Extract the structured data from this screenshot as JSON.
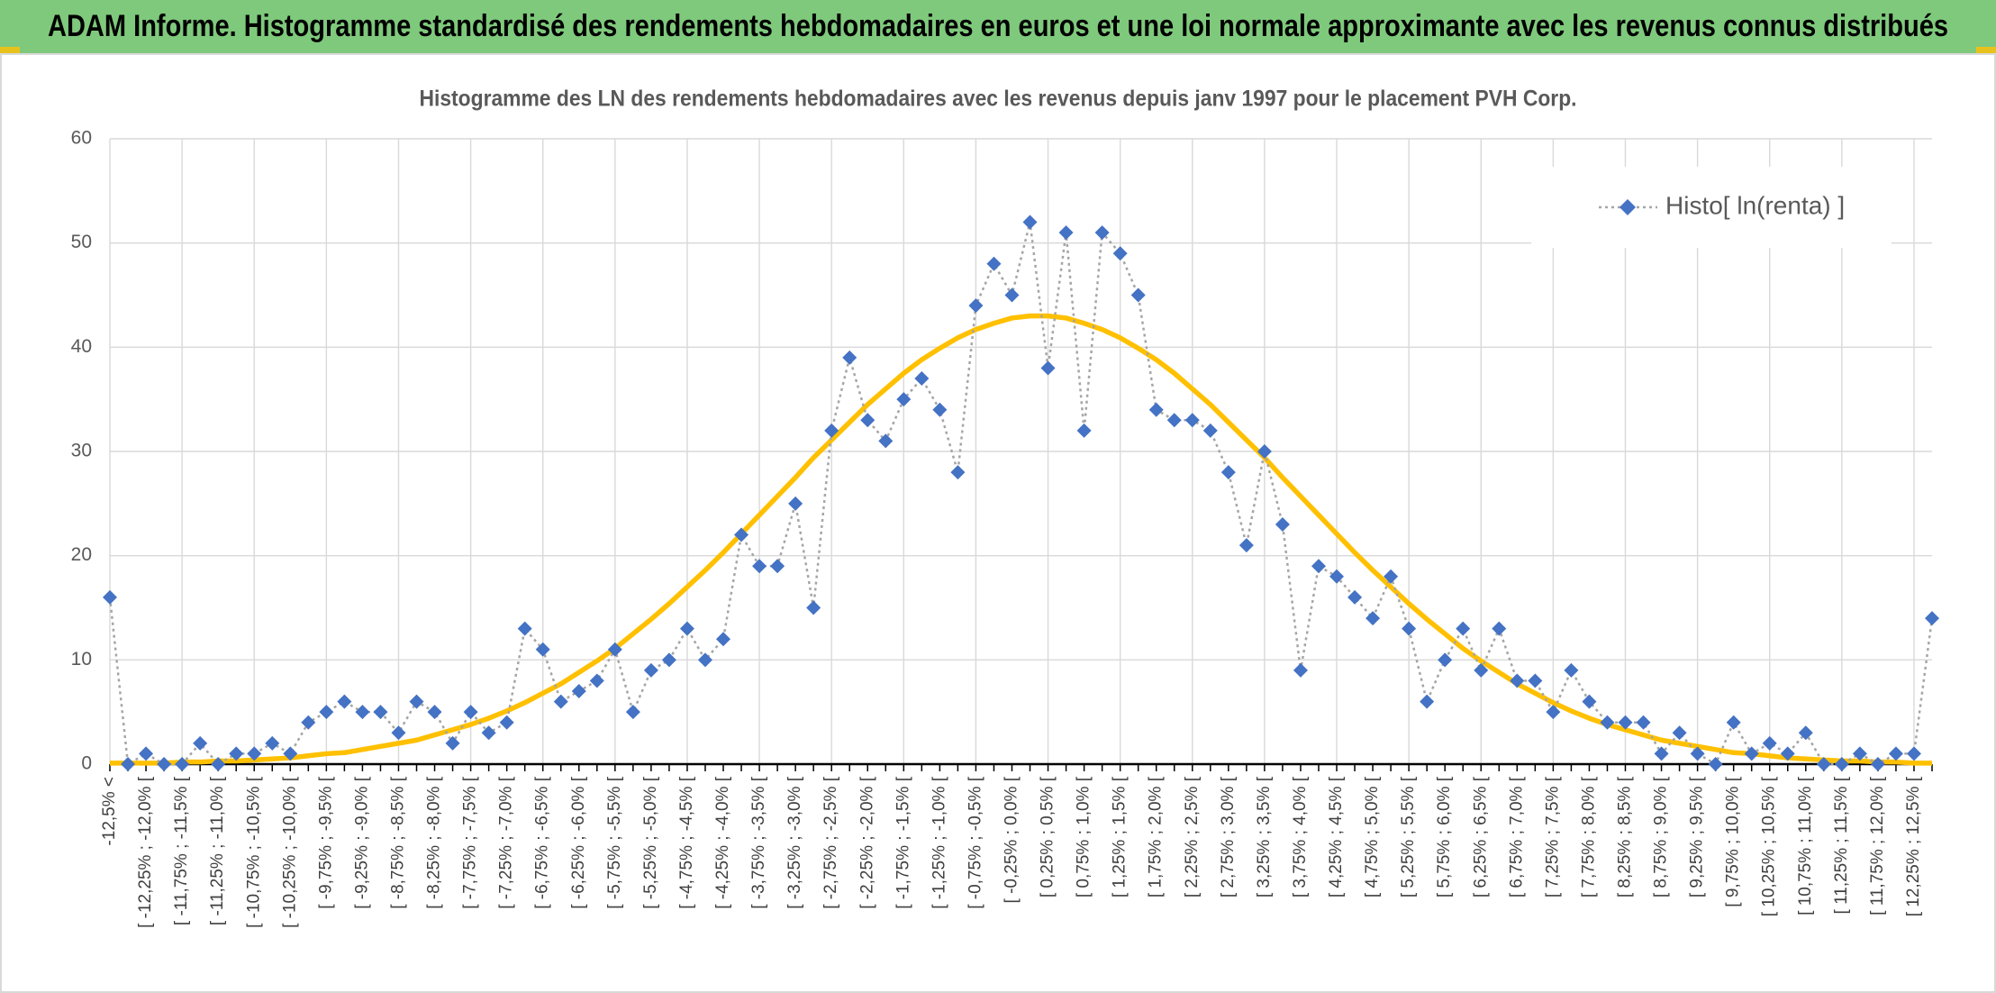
{
  "header": {
    "title": "ADAM Informe. Histogramme standardisé des rendements hebdomadaires en euros et une loi normale approximante avec les revenus connus distribués"
  },
  "chart_data": {
    "type": "line",
    "title": "Histogramme des LN des rendements hebdomadaires avec les revenus depuis janv 1997 pour le placement PVH Corp.",
    "categories": [
      "-12,5% <",
      null,
      "[ -12,25% ; -12,0% [",
      null,
      "[ -11,75% ; -11,5% [",
      null,
      "[ -11,25% ; -11,0% [",
      null,
      "[ -10,75% ; -10,5% [",
      null,
      "[ -10,25% ; -10,0% [",
      null,
      "[ -9,75% ; -9,5% [",
      null,
      "[ -9,25% ; -9,0% [",
      null,
      "[ -8,75% ; -8,5% [",
      null,
      "[ -8,25% ; -8,0% [",
      null,
      "[ -7,75% ; -7,5% [",
      null,
      "[ -7,25% ; -7,0% [",
      null,
      "[ -6,75% ; -6,5% [",
      null,
      "[ -6,25% ; -6,0% [",
      null,
      "[ -5,75% ; -5,5% [",
      null,
      "[ -5,25% ; -5,0% [",
      null,
      "[ -4,75% ; -4,5% [",
      null,
      "[ -4,25% ; -4,0% [",
      null,
      "[ -3,75% ; -3,5% [",
      null,
      "[ -3,25% ; -3,0% [",
      null,
      "[ -2,75% ; -2,5% [",
      null,
      "[ -2,25% ; -2,0% [",
      null,
      "[ -1,75% ; -1,5% [",
      null,
      "[ -1,25% ; -1,0% [",
      null,
      "[ -0,75% ; -0,5% [",
      null,
      "[ -0,25% ; 0,0% [",
      null,
      "[ 0,25% ; 0,5% [",
      null,
      "[ 0,75% ; 1,0% [",
      null,
      "[ 1,25% ; 1,5% [",
      null,
      "[ 1,75% ; 2,0% [",
      null,
      "[ 2,25% ; 2,5% [",
      null,
      "[ 2,75% ; 3,0% [",
      null,
      "[ 3,25% ; 3,5% [",
      null,
      "[ 3,75% ; 4,0% [",
      null,
      "[ 4,25% ; 4,5% [",
      null,
      "[ 4,75% ; 5,0% [",
      null,
      "[ 5,25% ; 5,5% [",
      null,
      "[ 5,75% ; 6,0% [",
      null,
      "[ 6,25% ; 6,5% [",
      null,
      "[ 6,75% ; 7,0% [",
      null,
      "[ 7,25% ; 7,5% [",
      null,
      "[ 7,75% ; 8,0% [",
      null,
      "[ 8,25% ; 8,5% [",
      null,
      "[ 8,75% ; 9,0% [",
      null,
      "[ 9,25% ; 9,5% [",
      null,
      "[ 9,75% ; 10,0% [",
      null,
      "[ 10,25% ; 10,5% [",
      null,
      "[ 10,75% ; 11,0% [",
      null,
      "[ 11,25% ; 11,5% [",
      null,
      "[ 11,75% ; 12,0% [",
      null,
      "[ 12,25% ; 12,5% [",
      null
    ],
    "series": [
      {
        "name": "Histo[ ln(renta) ]",
        "color": "#4472c4",
        "line_color": "#a5a5a5",
        "values": [
          16,
          0,
          1,
          0,
          0,
          2,
          0,
          1,
          1,
          2,
          1,
          4,
          5,
          6,
          5,
          5,
          3,
          6,
          5,
          2,
          5,
          3,
          4,
          13,
          11,
          6,
          7,
          8,
          11,
          5,
          9,
          10,
          13,
          10,
          12,
          22,
          19,
          19,
          25,
          15,
          32,
          39,
          33,
          31,
          35,
          37,
          34,
          28,
          44,
          48,
          45,
          52,
          38,
          51,
          32,
          51,
          49,
          45,
          34,
          33,
          33,
          32,
          28,
          21,
          30,
          23,
          9,
          19,
          18,
          16,
          14,
          18,
          13,
          6,
          10,
          13,
          9,
          13,
          8,
          8,
          5,
          9,
          6,
          4,
          4,
          4,
          1,
          3,
          1,
          0,
          4,
          1,
          2,
          1,
          3,
          0,
          0,
          1,
          0,
          1,
          1,
          14
        ]
      },
      {
        "color": "#ffc000",
        "values": [
          0.1,
          0.1,
          0.1,
          0.1,
          0.2,
          0.2,
          0.3,
          0.3,
          0.4,
          0.5,
          0.6,
          0.8,
          1.0,
          1.1,
          1.4,
          1.7,
          2.0,
          2.3,
          2.8,
          3.3,
          3.8,
          4.4,
          5.1,
          5.9,
          6.8,
          7.7,
          8.8,
          9.9,
          11.1,
          12.5,
          13.9,
          15.4,
          17.0,
          18.6,
          20.3,
          22.1,
          23.9,
          25.7,
          27.5,
          29.4,
          31.1,
          32.8,
          34.5,
          36.0,
          37.5,
          38.8,
          39.9,
          40.9,
          41.7,
          42.3,
          42.8,
          43.0,
          43.0,
          42.8,
          42.3,
          41.7,
          40.9,
          39.9,
          38.8,
          37.5,
          36.0,
          34.5,
          32.8,
          31.1,
          29.4,
          27.5,
          25.7,
          23.9,
          22.1,
          20.3,
          18.6,
          17.0,
          15.4,
          13.9,
          12.5,
          11.1,
          9.9,
          8.8,
          7.7,
          6.8,
          5.9,
          5.1,
          4.4,
          3.8,
          3.3,
          2.8,
          2.3,
          2.0,
          1.7,
          1.4,
          1.1,
          1.0,
          0.8,
          0.6,
          0.5,
          0.4,
          0.3,
          0.3,
          0.2,
          0.2,
          0.1,
          0.1
        ]
      }
    ],
    "ylim": [
      0,
      60
    ],
    "yticks": [
      0,
      10,
      20,
      30,
      40,
      50,
      60
    ],
    "grid": true,
    "legend": "upper right"
  }
}
